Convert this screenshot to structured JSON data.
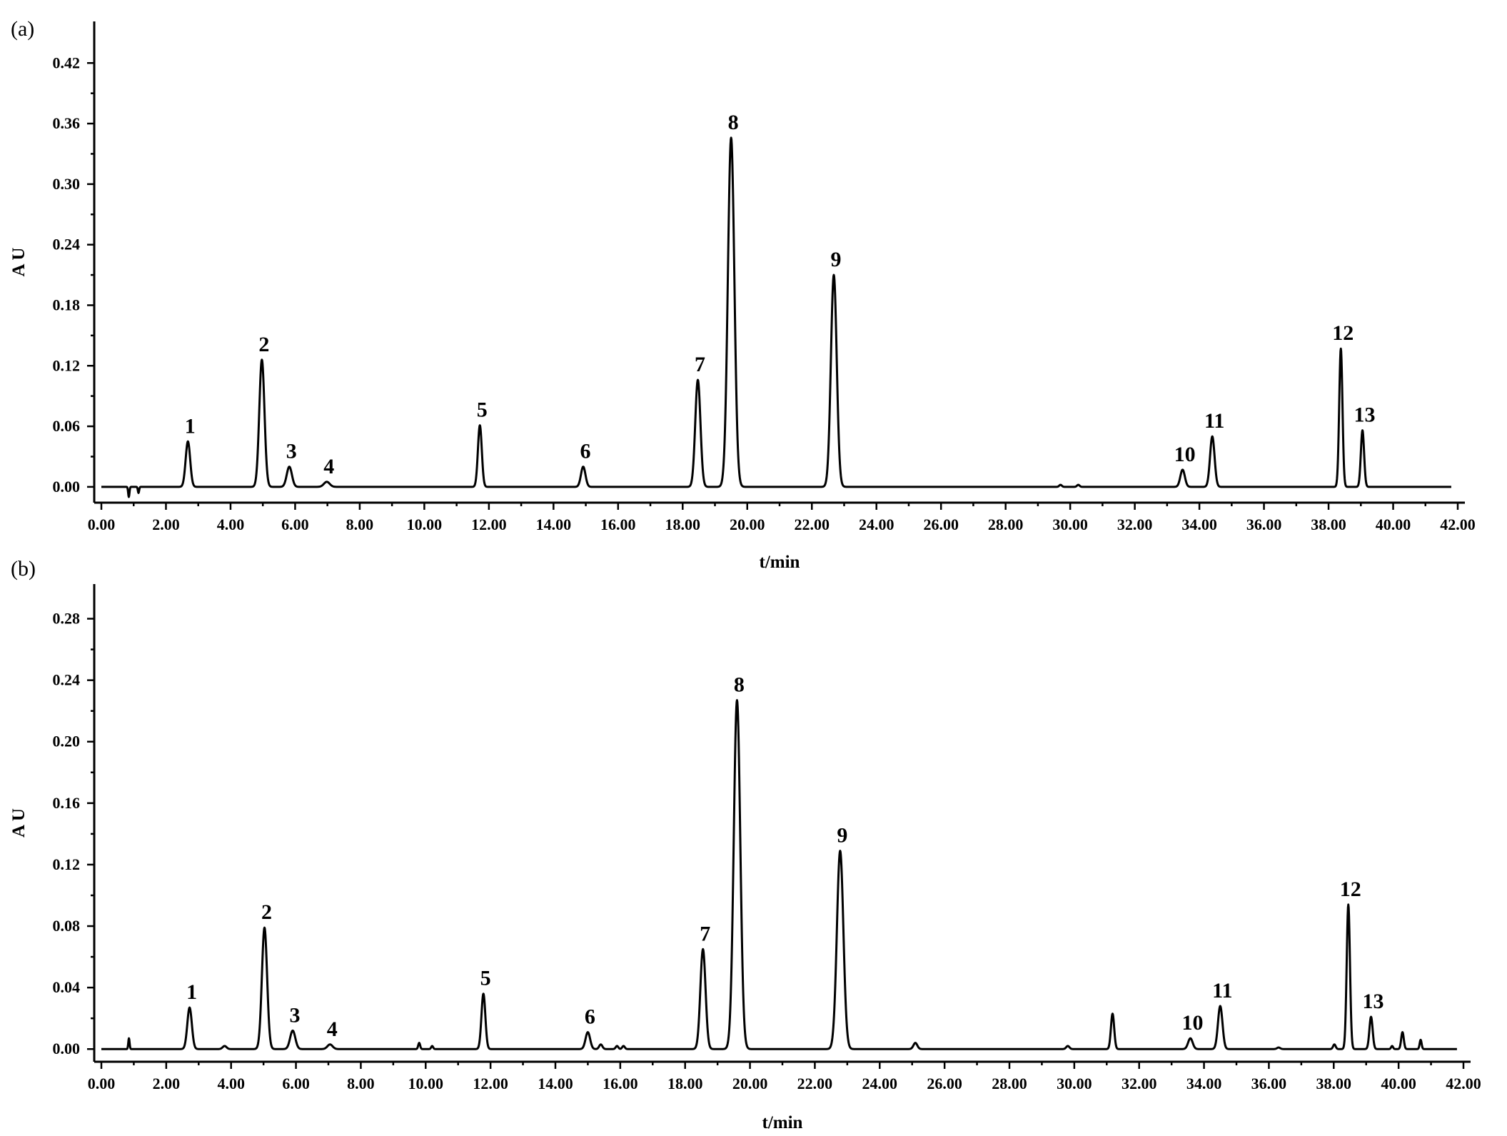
{
  "chart_data": [
    {
      "type": "line",
      "panel_label": "(a)",
      "xlabel": "t/min",
      "ylabel": "A U",
      "xlim": [
        0,
        42
      ],
      "ylim": [
        -0.01,
        0.44
      ],
      "x_ticks": [
        0,
        2,
        4,
        6,
        8,
        10,
        12,
        14,
        16,
        18,
        20,
        22,
        24,
        26,
        28,
        30,
        32,
        34,
        36,
        38,
        40,
        42
      ],
      "x_tick_labels": [
        "0.00",
        "2.00",
        "4.00",
        "6.00",
        "8.00",
        "10.00",
        "12.00",
        "14.00",
        "16.00",
        "18.00",
        "20.00",
        "22.00",
        "24.00",
        "26.00",
        "28.00",
        "30.00",
        "32.00",
        "34.00",
        "36.00",
        "38.00",
        "40.00",
        "42.00"
      ],
      "y_ticks": [
        0,
        0.06,
        0.12,
        0.18,
        0.24,
        0.3,
        0.36,
        0.42
      ],
      "y_tick_labels": [
        "0.00",
        "0.06",
        "0.12",
        "0.18",
        "0.24",
        "0.30",
        "0.36",
        "0.42"
      ],
      "grid": false,
      "peaks": [
        {
          "label": "1",
          "t": 2.68,
          "height": 0.045,
          "width": 0.07
        },
        {
          "label": "2",
          "t": 4.97,
          "height": 0.126,
          "width": 0.08
        },
        {
          "label": "3",
          "t": 5.82,
          "height": 0.02,
          "width": 0.08
        },
        {
          "label": "4",
          "t": 6.98,
          "height": 0.005,
          "width": 0.09
        },
        {
          "label": "5",
          "t": 11.72,
          "height": 0.061,
          "width": 0.06
        },
        {
          "label": "6",
          "t": 14.92,
          "height": 0.02,
          "width": 0.07
        },
        {
          "label": "7",
          "t": 18.47,
          "height": 0.106,
          "width": 0.08
        },
        {
          "label": "8",
          "t": 19.5,
          "height": 0.346,
          "width": 0.1
        },
        {
          "label": "9",
          "t": 22.68,
          "height": 0.21,
          "width": 0.09
        },
        {
          "label": "10",
          "t": 33.48,
          "height": 0.017,
          "width": 0.07
        },
        {
          "label": "11",
          "t": 34.4,
          "height": 0.05,
          "width": 0.07
        },
        {
          "label": "12",
          "t": 38.38,
          "height": 0.137,
          "width": 0.05
        },
        {
          "label": "13",
          "t": 39.05,
          "height": 0.056,
          "width": 0.05
        }
      ],
      "minor_peaks": [
        {
          "t": 0.85,
          "height": -0.01,
          "width": 0.02
        },
        {
          "t": 1.15,
          "height": -0.006,
          "width": 0.02
        },
        {
          "t": 29.7,
          "height": 0.002,
          "width": 0.04
        },
        {
          "t": 30.25,
          "height": 0.002,
          "width": 0.04
        }
      ]
    },
    {
      "type": "line",
      "panel_label": "(b)",
      "xlabel": "t/min",
      "ylabel": "A U",
      "xlim": [
        0,
        42
      ],
      "ylim": [
        -0.005,
        0.29
      ],
      "x_ticks": [
        0,
        2,
        4,
        6,
        8,
        10,
        12,
        14,
        16,
        18,
        20,
        22,
        24,
        26,
        28,
        30,
        32,
        34,
        36,
        38,
        40,
        42
      ],
      "x_tick_labels": [
        "0.00",
        "2.00",
        "4.00",
        "6.00",
        "8.00",
        "10.00",
        "12.00",
        "14.00",
        "16.00",
        "18.00",
        "20.00",
        "22.00",
        "24.00",
        "26.00",
        "28.00",
        "30.00",
        "32.00",
        "34.00",
        "36.00",
        "38.00",
        "40.00",
        "42.00"
      ],
      "y_ticks": [
        0,
        0.04,
        0.08,
        0.12,
        0.16,
        0.2,
        0.24,
        0.28
      ],
      "y_tick_labels": [
        "0.00",
        "0.04",
        "0.08",
        "0.12",
        "0.16",
        "0.20",
        "0.24",
        "0.28"
      ],
      "grid": false,
      "peaks": [
        {
          "label": "1",
          "t": 2.72,
          "height": 0.027,
          "width": 0.07
        },
        {
          "label": "2",
          "t": 5.03,
          "height": 0.079,
          "width": 0.08
        },
        {
          "label": "3",
          "t": 5.9,
          "height": 0.012,
          "width": 0.08
        },
        {
          "label": "4",
          "t": 7.05,
          "height": 0.003,
          "width": 0.08
        },
        {
          "label": "5",
          "t": 11.78,
          "height": 0.036,
          "width": 0.06
        },
        {
          "label": "6",
          "t": 15.0,
          "height": 0.011,
          "width": 0.07
        },
        {
          "label": "7",
          "t": 18.55,
          "height": 0.065,
          "width": 0.08
        },
        {
          "label": "8",
          "t": 19.6,
          "height": 0.227,
          "width": 0.1
        },
        {
          "label": "9",
          "t": 22.78,
          "height": 0.129,
          "width": 0.1
        },
        {
          "label": "10",
          "t": 33.58,
          "height": 0.007,
          "width": 0.07
        },
        {
          "label": "11",
          "t": 34.5,
          "height": 0.028,
          "width": 0.07
        },
        {
          "label": "12",
          "t": 38.45,
          "height": 0.094,
          "width": 0.05
        },
        {
          "label": "13",
          "t": 39.15,
          "height": 0.021,
          "width": 0.05
        }
      ],
      "minor_peaks": [
        {
          "t": 0.85,
          "height": 0.007,
          "width": 0.02
        },
        {
          "t": 3.8,
          "height": 0.002,
          "width": 0.06
        },
        {
          "t": 9.8,
          "height": 0.004,
          "width": 0.03
        },
        {
          "t": 10.2,
          "height": 0.002,
          "width": 0.03
        },
        {
          "t": 15.4,
          "height": 0.003,
          "width": 0.05
        },
        {
          "t": 15.9,
          "height": 0.002,
          "width": 0.04
        },
        {
          "t": 16.1,
          "height": 0.002,
          "width": 0.04
        },
        {
          "t": 25.1,
          "height": 0.004,
          "width": 0.06
        },
        {
          "t": 29.8,
          "height": 0.002,
          "width": 0.05
        },
        {
          "t": 31.18,
          "height": 0.023,
          "width": 0.05
        },
        {
          "t": 36.3,
          "height": 0.001,
          "width": 0.05
        },
        {
          "t": 38.02,
          "height": 0.003,
          "width": 0.04
        },
        {
          "t": 39.8,
          "height": 0.002,
          "width": 0.03
        },
        {
          "t": 40.12,
          "height": 0.011,
          "width": 0.04
        },
        {
          "t": 40.68,
          "height": 0.006,
          "width": 0.03
        }
      ]
    }
  ]
}
